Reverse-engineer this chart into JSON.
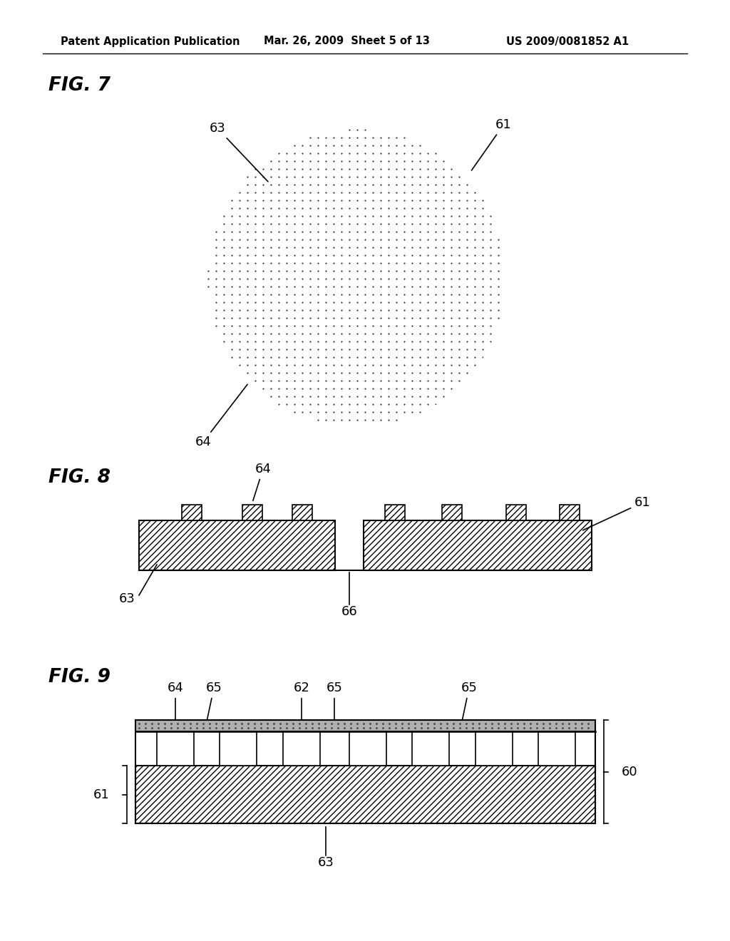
{
  "header_left": "Patent Application Publication",
  "header_mid": "Mar. 26, 2009  Sheet 5 of 13",
  "header_right": "US 2009/0081852 A1",
  "fig7_label": "FIG. 7",
  "fig8_label": "FIG. 8",
  "fig9_label": "FIG. 9",
  "background_color": "#ffffff",
  "line_color": "#000000"
}
